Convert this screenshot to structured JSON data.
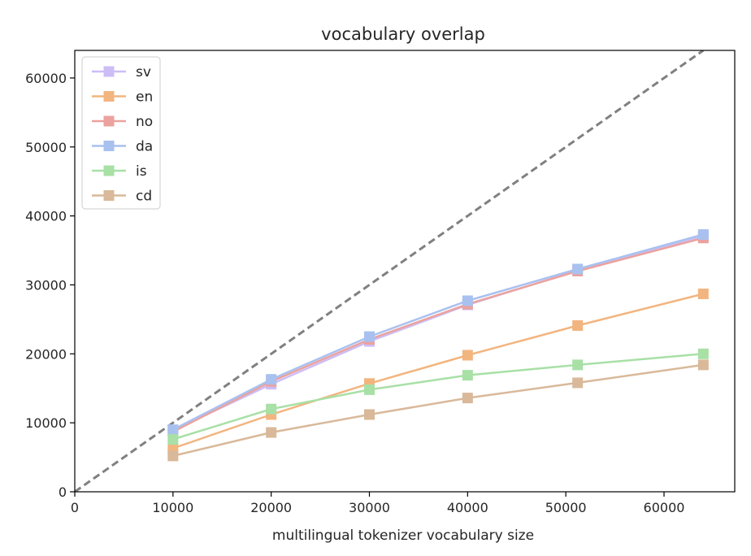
{
  "chart_data": {
    "type": "line",
    "title": "vocabulary overlap",
    "xlabel": "multilingual tokenizer vocabulary size",
    "ylabel": "",
    "xlim": [
      0,
      67200
    ],
    "ylim": [
      0,
      64000
    ],
    "xticks": [
      0,
      10000,
      20000,
      30000,
      40000,
      50000,
      60000
    ],
    "yticks": [
      0,
      10000,
      20000,
      30000,
      40000,
      50000,
      60000
    ],
    "grid": false,
    "legend_position": "top-left",
    "x": [
      10000,
      20000,
      30000,
      40000,
      51200,
      64000
    ],
    "reference_line": {
      "style": "dashed",
      "color": "#808080",
      "x": [
        0,
        64000
      ],
      "y": [
        0,
        64000
      ]
    },
    "series": [
      {
        "name": "sv",
        "color": "#cdbdf6",
        "values": [
          8900,
          15600,
          21800,
          27100,
          32100,
          37000
        ]
      },
      {
        "name": "en",
        "color": "#f2b57f",
        "values": [
          6300,
          11200,
          15700,
          19800,
          24100,
          28700
        ]
      },
      {
        "name": "no",
        "color": "#eba29e",
        "values": [
          8700,
          16000,
          22100,
          27200,
          32000,
          36800
        ]
      },
      {
        "name": "da",
        "color": "#a9c1ef",
        "values": [
          9000,
          16300,
          22500,
          27700,
          32300,
          37300
        ]
      },
      {
        "name": "is",
        "color": "#a8e0a6",
        "values": [
          7600,
          12000,
          14800,
          16900,
          18400,
          20000
        ]
      },
      {
        "name": "cd",
        "color": "#d9b99a",
        "values": [
          5200,
          8600,
          11200,
          13600,
          15800,
          18400
        ]
      }
    ]
  }
}
